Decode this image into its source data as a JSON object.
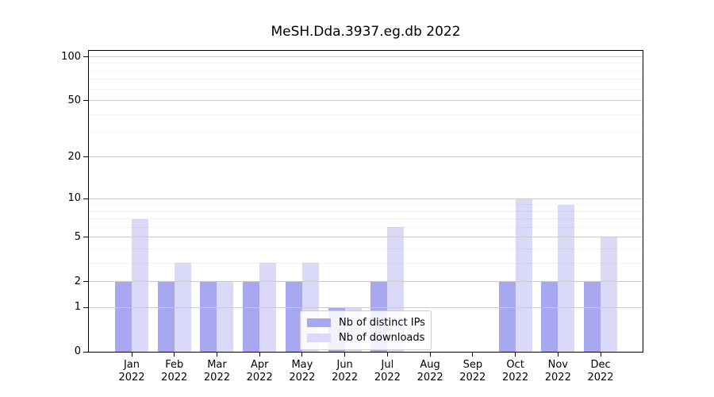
{
  "figure": {
    "background": "#ffffff",
    "axis_color": "#000000",
    "major_grid_color": "#cbcbcb",
    "minor_grid_color": "#efefef"
  },
  "chart_data": {
    "type": "bar",
    "title": "MeSH.Dda.3937.eg.db 2022",
    "x_months": [
      "Jan",
      "Feb",
      "Mar",
      "Apr",
      "May",
      "Jun",
      "Jul",
      "Aug",
      "Sep",
      "Oct",
      "Nov",
      "Dec"
    ],
    "x_year": "2022",
    "categories": [
      "Jan 2022",
      "Feb 2022",
      "Mar 2022",
      "Apr 2022",
      "May 2022",
      "Jun 2022",
      "Jul 2022",
      "Aug 2022",
      "Sep 2022",
      "Oct 2022",
      "Nov 2022",
      "Dec 2022"
    ],
    "series": [
      {
        "name": "Nb of distinct IPs",
        "color": "#a8a8f0",
        "values": [
          2,
          2,
          2,
          2,
          2,
          1,
          2,
          0,
          0,
          2,
          2,
          2
        ]
      },
      {
        "name": "Nb of downloads",
        "color": "#dadaf8",
        "values": [
          7,
          3,
          2,
          3,
          3,
          1,
          6,
          0,
          0,
          10,
          9,
          5
        ]
      }
    ],
    "y_axis": {
      "scale": "log10(1+v)",
      "ticks": [
        0,
        1,
        2,
        5,
        10,
        20,
        50,
        100
      ],
      "minor_gridlines": [
        3,
        4,
        6,
        7,
        8,
        9,
        30,
        40,
        60,
        70,
        80,
        90
      ],
      "ylim": [
        0,
        110
      ],
      "label": ""
    },
    "xlabel": "",
    "ylabel": "",
    "grid": "horizontal",
    "legend_position": "inside-lower-center"
  }
}
